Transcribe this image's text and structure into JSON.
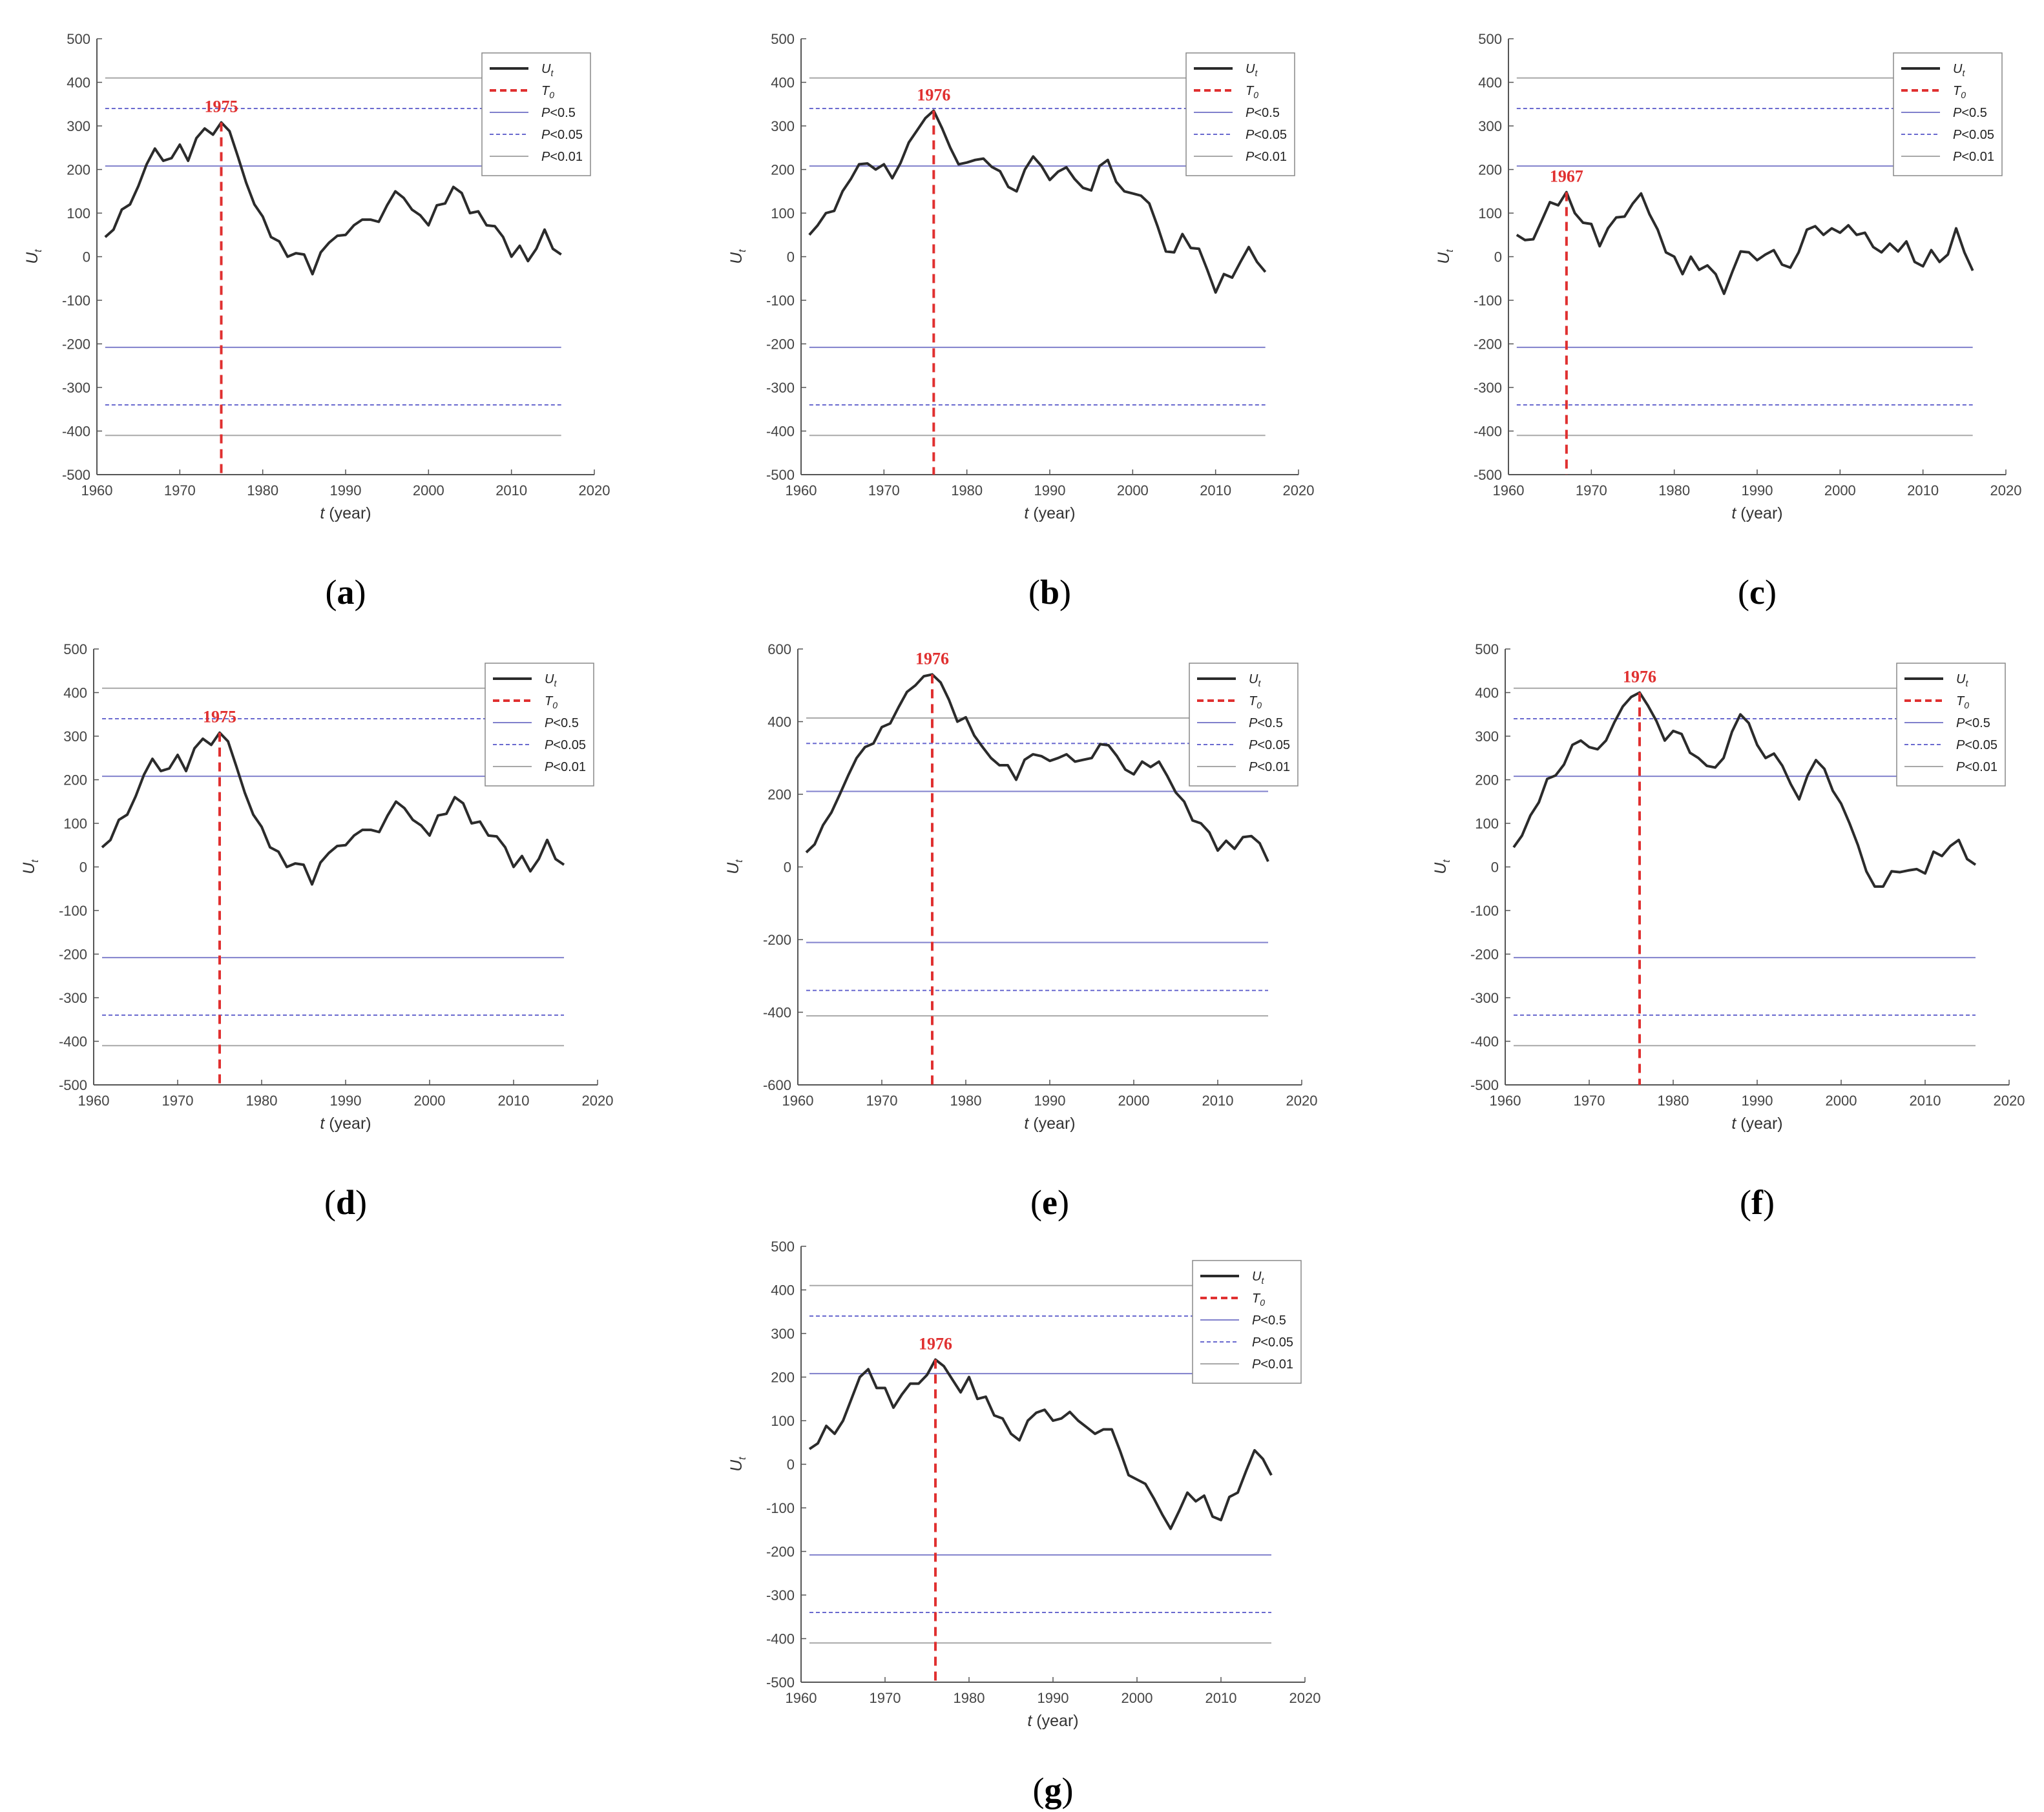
{
  "colors": {
    "series": "#2b2b2b",
    "change_point": "#e03030",
    "p05": "#8080cc",
    "p005": "#6a6acf",
    "p001": "#a8a8a8"
  },
  "legend_labels": {
    "ut": "U",
    "ut_sub": "t",
    "t0": "T",
    "t0_sub": "0",
    "p05": "P<0.5",
    "p005": "P<0.05",
    "p001": "P<0.01"
  },
  "chart_data": [
    {
      "type": "line",
      "panel": "(a)",
      "change_year": 1975,
      "change_label": "1975",
      "xlabel_italic": "t",
      "xlabel_rest": " (year)",
      "ylabel": "U",
      "ylabel_sub": "t",
      "xlim": [
        1960,
        2020
      ],
      "ylim": [
        -500,
        500
      ],
      "xticks": [
        1960,
        1970,
        1980,
        1990,
        2000,
        2010,
        2020
      ],
      "yticks": [
        -500,
        -400,
        -300,
        -200,
        -100,
        0,
        100,
        200,
        300,
        400,
        500
      ],
      "thresholds": {
        "p05": 208,
        "p005": 340,
        "p001": 410
      },
      "x_start": 1961,
      "y": [
        45,
        62,
        108,
        120,
        162,
        212,
        248,
        220,
        226,
        257,
        220,
        272,
        294,
        280,
        308,
        288,
        230,
        170,
        120,
        92,
        45,
        35,
        0,
        8,
        5,
        -40,
        10,
        32,
        48,
        50,
        72,
        85,
        85,
        80,
        118,
        150,
        135,
        108,
        95,
        72,
        118,
        122,
        160,
        146,
        100,
        104,
        72,
        70,
        45,
        0,
        25,
        -10,
        18,
        62,
        18,
        5
      ]
    },
    {
      "type": "line",
      "panel": "(b)",
      "change_year": 1976,
      "change_label": "1976",
      "xlabel_italic": "t",
      "xlabel_rest": " (year)",
      "ylabel": "U",
      "ylabel_sub": "t",
      "xlim": [
        1960,
        2020
      ],
      "ylim": [
        -500,
        500
      ],
      "xticks": [
        1960,
        1970,
        1980,
        1990,
        2000,
        2010,
        2020
      ],
      "yticks": [
        -500,
        -400,
        -300,
        -200,
        -100,
        0,
        100,
        200,
        300,
        400,
        500
      ],
      "thresholds": {
        "p05": 208,
        "p005": 340,
        "p001": 410
      },
      "x_start": 1961,
      "y": [
        50,
        72,
        100,
        105,
        150,
        178,
        212,
        214,
        200,
        212,
        180,
        215,
        262,
        290,
        318,
        335,
        295,
        250,
        212,
        216,
        222,
        225,
        206,
        196,
        160,
        150,
        200,
        230,
        208,
        176,
        195,
        205,
        178,
        158,
        152,
        208,
        222,
        172,
        150,
        145,
        140,
        122,
        70,
        12,
        10,
        52,
        20,
        18,
        -30,
        -82,
        -40,
        -48,
        -12,
        22,
        -12,
        -35
      ]
    },
    {
      "type": "line",
      "panel": "(c)",
      "change_year": 1967,
      "change_label": "1967",
      "xlabel_italic": "t",
      "xlabel_rest": " (year)",
      "ylabel": "U",
      "ylabel_sub": "t",
      "xlim": [
        1960,
        2020
      ],
      "ylim": [
        -500,
        500
      ],
      "xticks": [
        1960,
        1970,
        1980,
        1990,
        2000,
        2010,
        2020
      ],
      "yticks": [
        -500,
        -400,
        -300,
        -200,
        -100,
        0,
        100,
        200,
        300,
        400,
        500
      ],
      "thresholds": {
        "p05": 208,
        "p005": 340,
        "p001": 410
      },
      "x_start": 1961,
      "y": [
        50,
        38,
        40,
        82,
        125,
        118,
        148,
        100,
        78,
        75,
        24,
        65,
        90,
        92,
        122,
        145,
        98,
        62,
        10,
        0,
        -40,
        0,
        -30,
        -20,
        -40,
        -85,
        -35,
        12,
        10,
        -8,
        5,
        15,
        -18,
        -25,
        10,
        62,
        70,
        50,
        65,
        55,
        72,
        50,
        55,
        22,
        10,
        30,
        12,
        35,
        -12,
        -22,
        15,
        -12,
        5,
        65,
        10,
        -32
      ]
    },
    {
      "type": "line",
      "panel": "(d)",
      "change_year": 1975,
      "change_label": "1975",
      "xlabel_italic": "t",
      "xlabel_rest": " (year)",
      "ylabel": "U",
      "ylabel_sub": "t",
      "xlim": [
        1960,
        2020
      ],
      "ylim": [
        -500,
        500
      ],
      "xticks": [
        1960,
        1970,
        1980,
        1990,
        2000,
        2010,
        2020
      ],
      "yticks": [
        -500,
        -400,
        -300,
        -200,
        -100,
        0,
        100,
        200,
        300,
        400,
        500
      ],
      "thresholds": {
        "p05": 208,
        "p005": 340,
        "p001": 410
      },
      "x_start": 1961,
      "y": [
        45,
        62,
        108,
        120,
        162,
        212,
        248,
        220,
        226,
        257,
        220,
        272,
        294,
        280,
        308,
        288,
        230,
        170,
        120,
        92,
        45,
        35,
        0,
        8,
        5,
        -40,
        10,
        32,
        48,
        50,
        72,
        85,
        85,
        80,
        118,
        150,
        135,
        108,
        95,
        72,
        118,
        122,
        160,
        146,
        100,
        104,
        72,
        70,
        45,
        0,
        25,
        -10,
        18,
        62,
        18,
        5
      ]
    },
    {
      "type": "line",
      "panel": "(e)",
      "change_year": 1976,
      "change_label": "1976",
      "xlabel_italic": "t",
      "xlabel_rest": " (year)",
      "ylabel": "U",
      "ylabel_sub": "t",
      "xlim": [
        1960,
        2020
      ],
      "ylim": [
        -600,
        600
      ],
      "xticks": [
        1960,
        1970,
        1980,
        1990,
        2000,
        2010,
        2020
      ],
      "yticks": [
        -600,
        -400,
        -200,
        0,
        200,
        400,
        600
      ],
      "thresholds": {
        "p05": 208,
        "p005": 340,
        "p001": 410
      },
      "x_start": 1961,
      "y": [
        40,
        62,
        115,
        150,
        200,
        252,
        300,
        330,
        340,
        385,
        395,
        440,
        482,
        500,
        525,
        530,
        508,
        460,
        400,
        412,
        362,
        330,
        300,
        280,
        280,
        240,
        295,
        310,
        305,
        292,
        300,
        310,
        290,
        295,
        300,
        338,
        335,
        305,
        268,
        255,
        290,
        275,
        290,
        250,
        205,
        180,
        128,
        120,
        95,
        45,
        72,
        50,
        82,
        85,
        65,
        15
      ]
    },
    {
      "type": "line",
      "panel": "(f)",
      "change_year": 1976,
      "change_label": "1976",
      "xlabel_italic": "t",
      "xlabel_rest": " (year)",
      "ylabel": "U",
      "ylabel_sub": "t",
      "xlim": [
        1960,
        2020
      ],
      "ylim": [
        -500,
        500
      ],
      "xticks": [
        1960,
        1970,
        1980,
        1990,
        2000,
        2010,
        2020
      ],
      "yticks": [
        -500,
        -400,
        -300,
        -200,
        -100,
        0,
        100,
        200,
        300,
        400,
        500
      ],
      "thresholds": {
        "p05": 208,
        "p005": 340,
        "p001": 410
      },
      "x_start": 1961,
      "y": [
        45,
        72,
        118,
        148,
        202,
        210,
        235,
        280,
        290,
        275,
        270,
        290,
        332,
        368,
        390,
        400,
        370,
        335,
        290,
        312,
        305,
        262,
        250,
        232,
        228,
        250,
        310,
        350,
        330,
        280,
        250,
        260,
        232,
        190,
        155,
        210,
        245,
        225,
        175,
        145,
        100,
        50,
        -10,
        -45,
        -45,
        -10,
        -12,
        -8,
        -5,
        -15,
        35,
        25,
        48,
        62,
        18,
        5
      ]
    },
    {
      "type": "line",
      "panel": "(g)",
      "change_year": 1976,
      "change_label": "1976",
      "xlabel_italic": "t",
      "xlabel_rest": " (year)",
      "ylabel": "U",
      "ylabel_sub": "t",
      "xlim": [
        1960,
        2020
      ],
      "ylim": [
        -500,
        500
      ],
      "xticks": [
        1960,
        1970,
        1980,
        1990,
        2000,
        2010,
        2020
      ],
      "yticks": [
        -500,
        -400,
        -300,
        -200,
        -100,
        0,
        100,
        200,
        300,
        400,
        500
      ],
      "thresholds": {
        "p05": 208,
        "p005": 340,
        "p001": 410
      },
      "x_start": 1961,
      "y": [
        35,
        48,
        88,
        70,
        100,
        150,
        200,
        218,
        175,
        175,
        130,
        160,
        185,
        185,
        205,
        240,
        225,
        195,
        165,
        200,
        150,
        155,
        112,
        105,
        70,
        55,
        100,
        118,
        125,
        100,
        105,
        120,
        100,
        85,
        70,
        80,
        80,
        30,
        -25,
        -35,
        -45,
        -78,
        -115,
        -148,
        -108,
        -65,
        -85,
        -72,
        -120,
        -128,
        -75,
        -65,
        -15,
        32,
        12,
        -25
      ]
    }
  ]
}
